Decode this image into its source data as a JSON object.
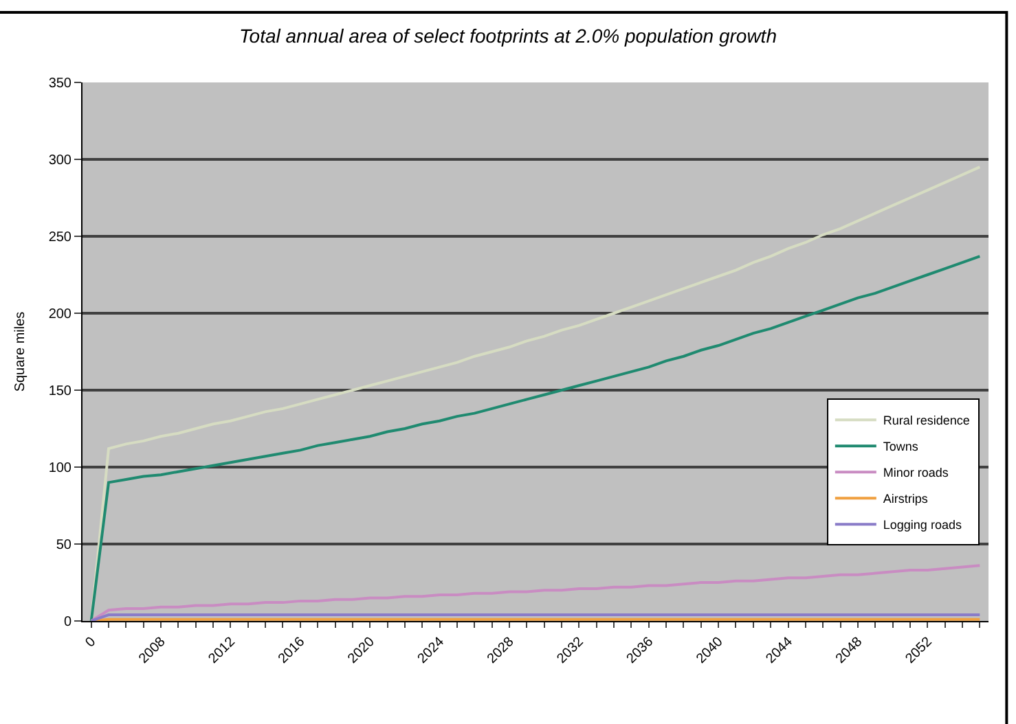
{
  "chart_data": {
    "type": "line",
    "title": "Total annual area of select footprints at 2.0% population growth",
    "ylabel": "Square miles",
    "categories": [
      "0",
      null,
      null,
      null,
      "2008",
      null,
      null,
      null,
      "2012",
      null,
      null,
      null,
      "2016",
      null,
      null,
      null,
      "2020",
      null,
      null,
      null,
      "2024",
      null,
      null,
      null,
      "2028",
      null,
      null,
      null,
      "2032",
      null,
      null,
      null,
      "2036",
      null,
      null,
      null,
      "2040",
      null,
      null,
      null,
      "2044",
      null,
      null,
      null,
      "2048",
      null,
      null,
      null,
      "2052",
      null,
      null,
      null
    ],
    "series": [
      {
        "name": "Rural residence",
        "color": "#d6dcc2",
        "values": [
          0,
          112,
          115,
          117,
          120,
          122,
          125,
          128,
          130,
          133,
          136,
          138,
          141,
          144,
          147,
          150,
          153,
          156,
          159,
          162,
          165,
          168,
          172,
          175,
          178,
          182,
          185,
          189,
          192,
          196,
          200,
          204,
          208,
          212,
          216,
          220,
          224,
          228,
          233,
          237,
          242,
          246,
          251,
          255,
          260,
          265,
          270,
          275,
          280,
          285,
          290,
          295
        ]
      },
      {
        "name": "Towns",
        "color": "#1f8a70",
        "values": [
          0,
          90,
          92,
          94,
          95,
          97,
          99,
          101,
          103,
          105,
          107,
          109,
          111,
          114,
          116,
          118,
          120,
          123,
          125,
          128,
          130,
          133,
          135,
          138,
          141,
          144,
          147,
          150,
          153,
          156,
          159,
          162,
          165,
          169,
          172,
          176,
          179,
          183,
          187,
          190,
          194,
          198,
          202,
          206,
          210,
          213,
          217,
          221,
          225,
          229,
          233,
          237
        ]
      },
      {
        "name": "Minor roads",
        "color": "#c98cc2",
        "values": [
          0,
          7,
          8,
          8,
          9,
          9,
          10,
          10,
          11,
          11,
          12,
          12,
          13,
          13,
          14,
          14,
          15,
          15,
          16,
          16,
          17,
          17,
          18,
          18,
          19,
          19,
          20,
          20,
          21,
          21,
          22,
          22,
          23,
          23,
          24,
          25,
          25,
          26,
          26,
          27,
          28,
          28,
          29,
          30,
          30,
          31,
          32,
          33,
          33,
          34,
          35,
          36
        ]
      },
      {
        "name": "Airstrips",
        "color": "#f0a040",
        "values": [
          0,
          1,
          1,
          1,
          1,
          1,
          1,
          1,
          1,
          1,
          1,
          1,
          1,
          1,
          1,
          1,
          1,
          1,
          1,
          1,
          1,
          1,
          1,
          1,
          1,
          1,
          1,
          1,
          1,
          1,
          1,
          1,
          1,
          1,
          1,
          1,
          1,
          1,
          1,
          1,
          1,
          1,
          1,
          1,
          1,
          1,
          1,
          1,
          1,
          1,
          1,
          1
        ]
      },
      {
        "name": "Logging roads",
        "color": "#8a7cc8",
        "values": [
          0,
          4,
          4,
          4,
          4,
          4,
          4,
          4,
          4,
          4,
          4,
          4,
          4,
          4,
          4,
          4,
          4,
          4,
          4,
          4,
          4,
          4,
          4,
          4,
          4,
          4,
          4,
          4,
          4,
          4,
          4,
          4,
          4,
          4,
          4,
          4,
          4,
          4,
          4,
          4,
          4,
          4,
          4,
          4,
          4,
          4,
          4,
          4,
          4,
          4,
          4,
          4
        ]
      }
    ],
    "ylim": [
      0,
      350
    ],
    "yticks": [
      0,
      50,
      100,
      150,
      200,
      250,
      300,
      350
    ],
    "grid": "y",
    "legend": "right",
    "marker": "none",
    "line_style": "solid"
  }
}
